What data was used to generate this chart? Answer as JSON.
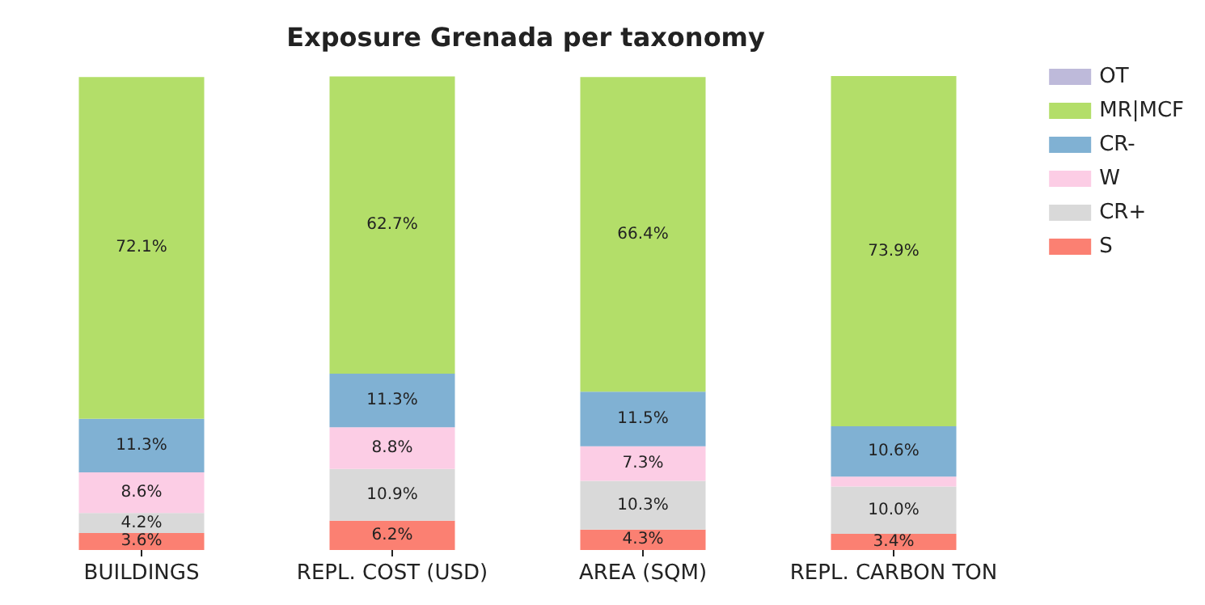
{
  "chart_data": {
    "type": "bar",
    "title": "Exposure Grenada per taxonomy",
    "categories": [
      "BUILDINGS",
      "REPL. COST (USD)",
      "AREA (SQM)",
      "REPL. CARBON TON"
    ],
    "stacked": true,
    "legend": "top right",
    "series": [
      {
        "name": "S",
        "color": "#fb8072",
        "values": [
          3.6,
          6.2,
          4.3,
          3.4
        ],
        "value_labels": [
          "3.6%",
          "6.2%",
          "4.3%",
          "3.4%"
        ]
      },
      {
        "name": "CR+",
        "color": "#d9d9d9",
        "values": [
          4.2,
          10.9,
          10.3,
          10.0
        ],
        "value_labels": [
          "4.2%",
          "10.9%",
          "10.3%",
          "10.0%"
        ]
      },
      {
        "name": "W",
        "color": "#fccde5",
        "values": [
          8.6,
          8.8,
          7.3,
          2.1
        ],
        "value_labels": [
          "8.6%",
          "8.8%",
          "7.3%",
          null
        ]
      },
      {
        "name": "CR-",
        "color": "#80b1d3",
        "values": [
          11.3,
          11.3,
          11.5,
          10.6
        ],
        "value_labels": [
          "11.3%",
          "11.3%",
          "11.5%",
          "10.6%"
        ]
      },
      {
        "name": "MR|MCF",
        "color": "#b3de69",
        "values": [
          72.1,
          62.7,
          66.4,
          73.9
        ],
        "value_labels": [
          "72.1%",
          "62.7%",
          "66.4%",
          "73.9%"
        ]
      },
      {
        "name": "OT",
        "color": "#bebada",
        "values": [
          0,
          0,
          0,
          0
        ],
        "value_labels": [
          null,
          null,
          null,
          null
        ]
      }
    ]
  }
}
